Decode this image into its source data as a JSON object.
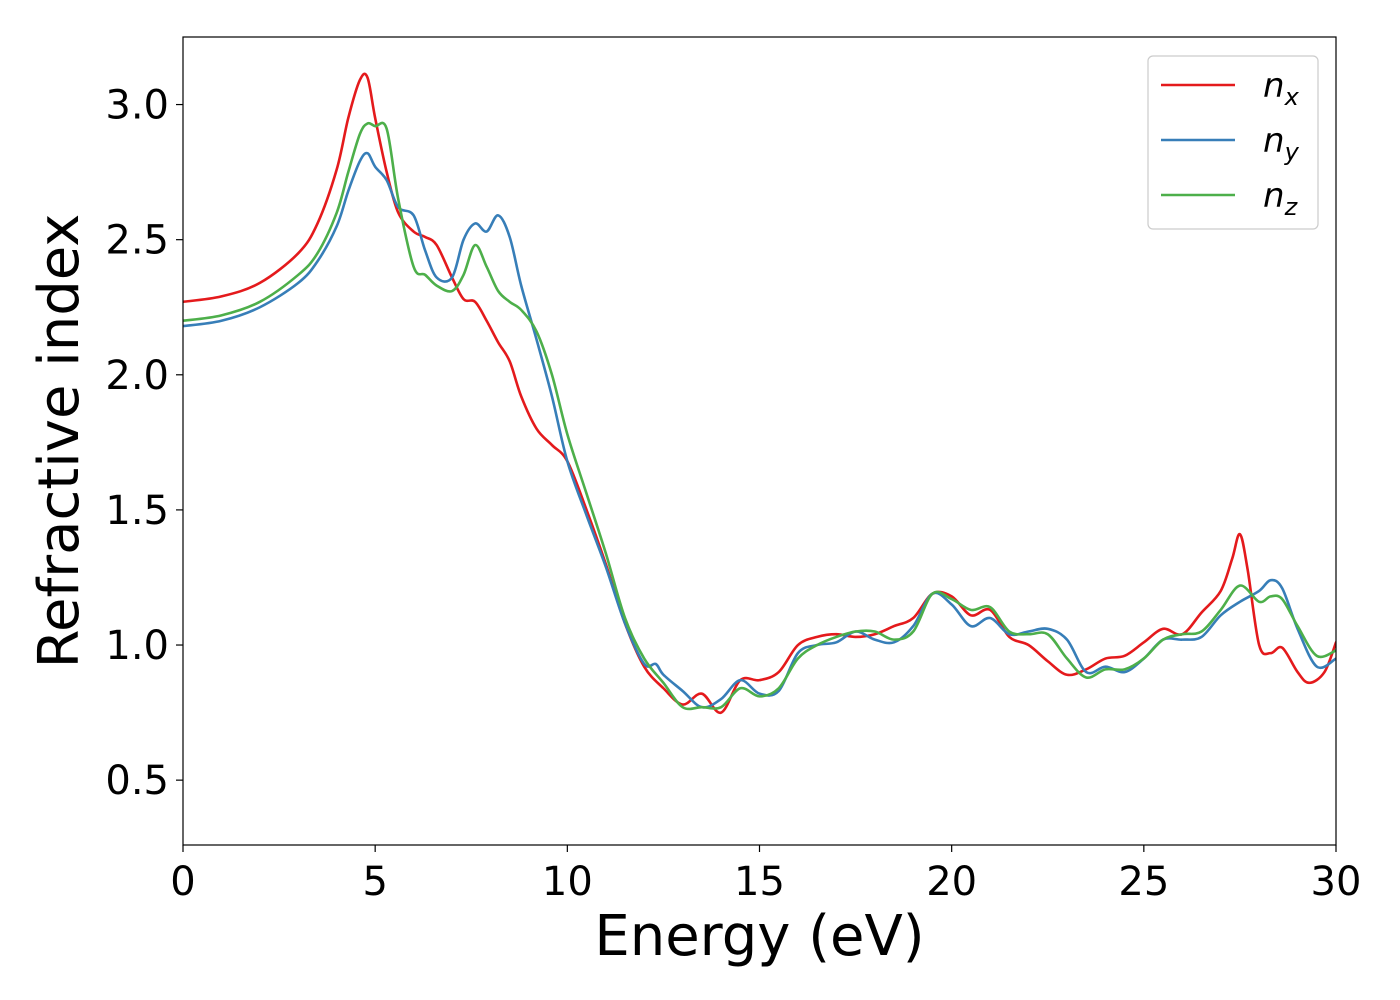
{
  "chart_data": {
    "type": "line",
    "xlabel": "Energy (eV)",
    "ylabel": "Refractive index",
    "xlim": [
      0,
      30
    ],
    "ylim": [
      0.26,
      3.25
    ],
    "xticks": [
      0,
      5,
      10,
      15,
      20,
      25,
      30
    ],
    "yticks": [
      0.5,
      1.0,
      1.5,
      2.0,
      2.5,
      3.0
    ],
    "xtick_labels": [
      "0",
      "5",
      "10",
      "15",
      "20",
      "25",
      "30"
    ],
    "ytick_labels": [
      "0.5",
      "1.0",
      "1.5",
      "2.0",
      "2.5",
      "3.0"
    ],
    "grid": false,
    "legend_position": "top-right",
    "series": [
      {
        "name": "n_x",
        "legend_base": "n",
        "legend_sub": "x",
        "color": "#e41a1c",
        "x": [
          0,
          1,
          2,
          3,
          3.5,
          4,
          4.3,
          4.6,
          4.8,
          5.0,
          5.3,
          5.6,
          6.0,
          6.3,
          6.6,
          7.0,
          7.3,
          7.6,
          7.9,
          8.2,
          8.5,
          8.8,
          9.2,
          9.6,
          10.0,
          10.5,
          11.0,
          11.5,
          12.0,
          12.5,
          13.0,
          13.5,
          14.0,
          14.5,
          15.0,
          15.5,
          16.0,
          16.5,
          17.0,
          17.5,
          18.0,
          18.5,
          19.0,
          19.5,
          20.0,
          20.5,
          21.0,
          21.5,
          22.0,
          22.5,
          23.0,
          23.5,
          24.0,
          24.5,
          25.0,
          25.5,
          26.0,
          26.5,
          27.0,
          27.3,
          27.5,
          27.7,
          28.0,
          28.3,
          28.6,
          29.0,
          29.3,
          29.7,
          30.0
        ],
        "y": [
          2.27,
          2.29,
          2.34,
          2.45,
          2.56,
          2.76,
          2.95,
          3.09,
          3.1,
          2.95,
          2.75,
          2.6,
          2.53,
          2.51,
          2.48,
          2.36,
          2.28,
          2.27,
          2.2,
          2.12,
          2.05,
          1.92,
          1.8,
          1.74,
          1.68,
          1.5,
          1.3,
          1.08,
          0.92,
          0.84,
          0.78,
          0.82,
          0.75,
          0.87,
          0.87,
          0.9,
          1.0,
          1.03,
          1.04,
          1.03,
          1.04,
          1.07,
          1.1,
          1.19,
          1.18,
          1.11,
          1.13,
          1.03,
          1.0,
          0.94,
          0.89,
          0.91,
          0.95,
          0.96,
          1.01,
          1.06,
          1.04,
          1.12,
          1.2,
          1.32,
          1.41,
          1.28,
          1.0,
          0.97,
          0.99,
          0.9,
          0.86,
          0.9,
          1.01
        ]
      },
      {
        "name": "n_y",
        "legend_base": "n",
        "legend_sub": "y",
        "color": "#377eb8",
        "x": [
          0,
          1,
          2,
          3,
          3.5,
          4,
          4.3,
          4.6,
          4.8,
          5.0,
          5.3,
          5.6,
          6.0,
          6.3,
          6.6,
          7.0,
          7.3,
          7.6,
          7.9,
          8.2,
          8.5,
          8.8,
          9.2,
          9.6,
          10.0,
          10.5,
          11.0,
          11.5,
          12.0,
          12.3,
          12.5,
          13.0,
          13.5,
          14.0,
          14.5,
          15.0,
          15.5,
          16.0,
          16.5,
          17.0,
          17.5,
          18.0,
          18.5,
          19.0,
          19.5,
          20.0,
          20.5,
          21.0,
          21.5,
          22.0,
          22.5,
          23.0,
          23.5,
          24.0,
          24.5,
          25.0,
          25.5,
          26.0,
          26.5,
          27.0,
          27.5,
          28.0,
          28.3,
          28.6,
          29.0,
          29.5,
          30.0
        ],
        "y": [
          2.18,
          2.2,
          2.25,
          2.34,
          2.42,
          2.55,
          2.68,
          2.79,
          2.82,
          2.77,
          2.72,
          2.62,
          2.59,
          2.46,
          2.36,
          2.36,
          2.5,
          2.56,
          2.53,
          2.59,
          2.51,
          2.33,
          2.13,
          1.92,
          1.68,
          1.48,
          1.29,
          1.08,
          0.93,
          0.93,
          0.89,
          0.83,
          0.77,
          0.8,
          0.87,
          0.82,
          0.83,
          0.97,
          1.0,
          1.01,
          1.05,
          1.02,
          1.01,
          1.07,
          1.19,
          1.15,
          1.07,
          1.1,
          1.04,
          1.05,
          1.06,
          1.02,
          0.9,
          0.92,
          0.9,
          0.95,
          1.02,
          1.02,
          1.03,
          1.11,
          1.16,
          1.2,
          1.24,
          1.21,
          1.06,
          0.92,
          0.95
        ]
      },
      {
        "name": "n_z",
        "legend_base": "n",
        "legend_sub": "z",
        "color": "#4daf4a",
        "x": [
          0,
          1,
          2,
          3,
          3.5,
          4,
          4.3,
          4.6,
          4.8,
          5.0,
          5.3,
          5.6,
          6.0,
          6.3,
          6.6,
          7.0,
          7.3,
          7.6,
          7.9,
          8.2,
          8.5,
          8.8,
          9.2,
          9.6,
          10.0,
          10.5,
          11.0,
          11.5,
          12.0,
          12.5,
          13.0,
          13.5,
          14.0,
          14.5,
          15.0,
          15.5,
          16.0,
          16.5,
          17.0,
          17.5,
          18.0,
          18.5,
          19.0,
          19.5,
          20.0,
          20.5,
          21.0,
          21.5,
          22.0,
          22.5,
          23.0,
          23.5,
          24.0,
          24.5,
          25.0,
          25.5,
          26.0,
          26.5,
          27.0,
          27.5,
          28.0,
          28.3,
          28.6,
          29.0,
          29.5,
          30.0
        ],
        "y": [
          2.2,
          2.22,
          2.27,
          2.37,
          2.45,
          2.6,
          2.75,
          2.89,
          2.93,
          2.92,
          2.91,
          2.65,
          2.4,
          2.37,
          2.33,
          2.31,
          2.37,
          2.48,
          2.4,
          2.31,
          2.27,
          2.24,
          2.16,
          2.0,
          1.78,
          1.56,
          1.34,
          1.1,
          0.95,
          0.86,
          0.77,
          0.77,
          0.77,
          0.84,
          0.81,
          0.84,
          0.95,
          1.0,
          1.03,
          1.05,
          1.05,
          1.02,
          1.05,
          1.19,
          1.17,
          1.13,
          1.14,
          1.05,
          1.04,
          1.04,
          0.95,
          0.88,
          0.91,
          0.91,
          0.95,
          1.02,
          1.04,
          1.05,
          1.13,
          1.22,
          1.16,
          1.18,
          1.17,
          1.07,
          0.96,
          0.98
        ]
      }
    ]
  }
}
